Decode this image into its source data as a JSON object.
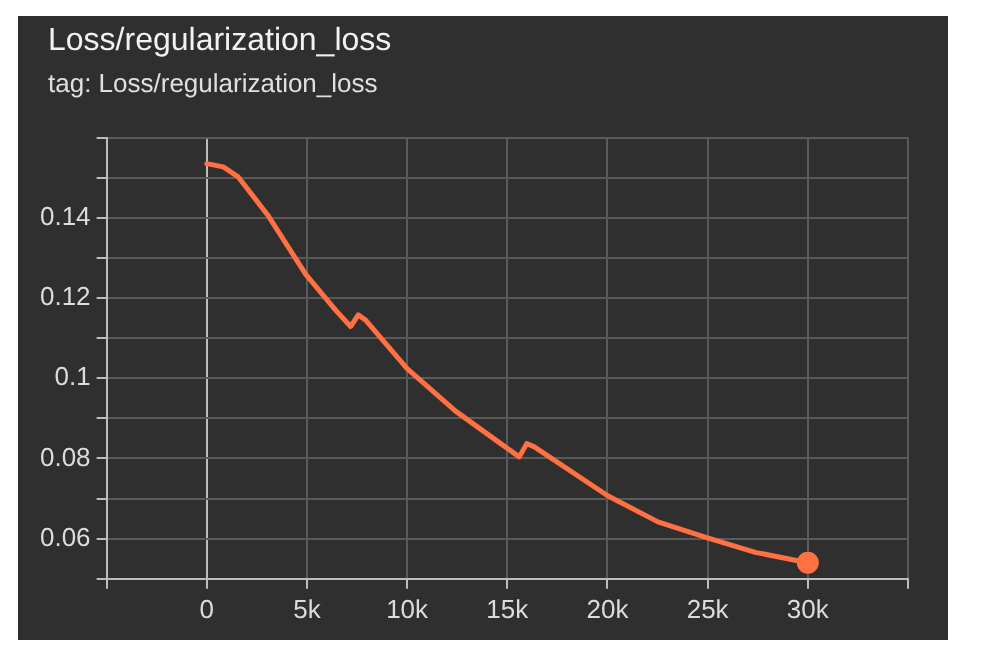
{
  "chart_data": {
    "type": "line",
    "title": "Loss/regularization_loss",
    "subtitle": "tag: Loss/regularization_loss",
    "xlim": [
      -5000,
      35000
    ],
    "xticks": [
      {
        "value": -5000,
        "label": null
      },
      {
        "value": 0,
        "label": "0"
      },
      {
        "value": 5000,
        "label": "5k"
      },
      {
        "value": 10000,
        "label": "10k"
      },
      {
        "value": 15000,
        "label": "15k"
      },
      {
        "value": 20000,
        "label": "20k"
      },
      {
        "value": 25000,
        "label": "25k"
      },
      {
        "value": 30000,
        "label": "30k"
      },
      {
        "value": 35000,
        "label": null
      }
    ],
    "ylim": [
      0.05,
      0.16
    ],
    "yticks": [
      {
        "value": 0.05,
        "label": null
      },
      0.06,
      {
        "value": 0.07,
        "label": null
      },
      0.08,
      {
        "value": 0.09,
        "label": null
      },
      0.1,
      {
        "value": 0.11,
        "label": null
      },
      0.12,
      {
        "value": 0.13,
        "label": null
      },
      0.14,
      {
        "value": 0.15,
        "label": null
      },
      {
        "value": 0.16,
        "label": null
      }
    ],
    "grid": true,
    "legend": false,
    "line_style": "solid",
    "series": [
      {
        "color": "#ff7043",
        "marker": "none",
        "x": [
          0,
          820,
          1570,
          3070,
          4940,
          6430,
          7180,
          7560,
          7930,
          10000,
          12420,
          14670,
          15600,
          15970,
          16350,
          20010,
          22520,
          24990,
          27380,
          30000
        ],
        "values": [
          0.1535,
          0.1527,
          0.1502,
          0.1405,
          0.1259,
          0.117,
          0.1129,
          0.1158,
          0.1145,
          0.1024,
          0.0918,
          0.0837,
          0.0804,
          0.0837,
          0.0829,
          0.0707,
          0.0642,
          0.0602,
          0.0566,
          0.054
        ]
      },
      {
        "type": "scatter",
        "color": "#ff7043",
        "marker": "circle",
        "x": [
          30000
        ],
        "values": [
          0.054
        ]
      }
    ]
  }
}
